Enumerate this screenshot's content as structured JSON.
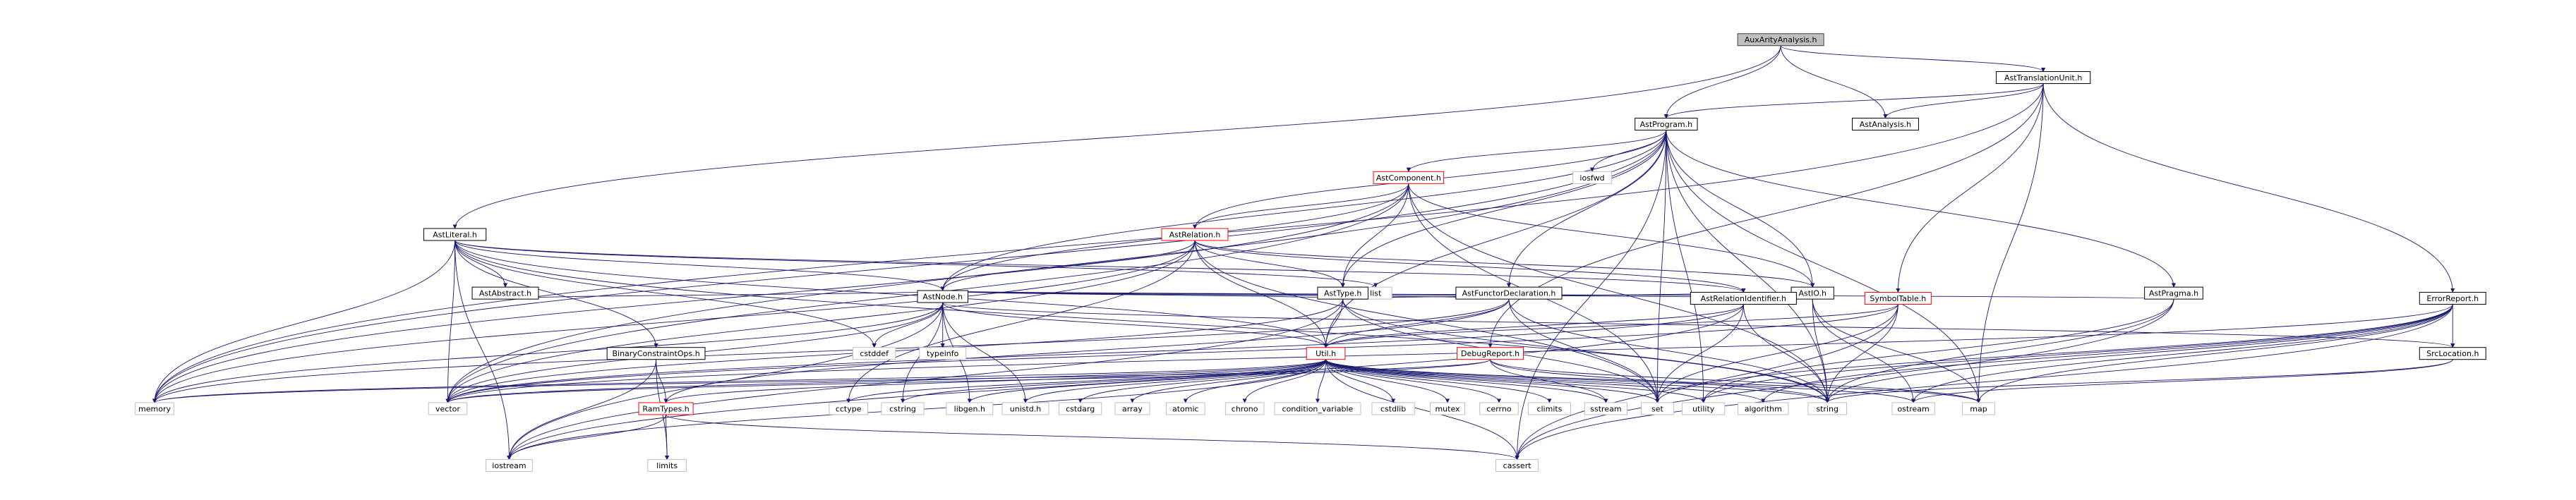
{
  "diagram": {
    "root": "AuxArityAnalysis.h",
    "colors": {
      "root_fill": "#bfbfbf",
      "root_border": "#404040",
      "documented_border": "#000000",
      "truncated_border": "#ff0000",
      "system_border": "#bfbfbf",
      "edge": "#191970"
    },
    "nodes": [
      {
        "id": "aux",
        "label": "AuxArityAnalysis.h",
        "kind": "root"
      },
      {
        "id": "atu",
        "label": "AstTranslationUnit.h",
        "kind": "documented"
      },
      {
        "id": "aprog",
        "label": "AstProgram.h",
        "kind": "documented"
      },
      {
        "id": "aanal",
        "label": "AstAnalysis.h",
        "kind": "documented"
      },
      {
        "id": "iosfwd",
        "label": "iosfwd",
        "kind": "system"
      },
      {
        "id": "acomp",
        "label": "AstComponent.h",
        "kind": "truncated"
      },
      {
        "id": "alit",
        "label": "AstLiteral.h",
        "kind": "documented"
      },
      {
        "id": "arel",
        "label": "AstRelation.h",
        "kind": "truncated"
      },
      {
        "id": "list",
        "label": "list",
        "kind": "system"
      },
      {
        "id": "aabs",
        "label": "AstAbstract.h",
        "kind": "documented"
      },
      {
        "id": "atype",
        "label": "AstType.h",
        "kind": "documented"
      },
      {
        "id": "afunc",
        "label": "AstFunctorDeclaration.h",
        "kind": "documented"
      },
      {
        "id": "aio",
        "label": "AstIO.h",
        "kind": "documented"
      },
      {
        "id": "aprag",
        "label": "AstPragma.h",
        "kind": "documented"
      },
      {
        "id": "anode",
        "label": "AstNode.h",
        "kind": "documented"
      },
      {
        "id": "ari",
        "label": "AstRelationIdentifier.h",
        "kind": "documented"
      },
      {
        "id": "symt",
        "label": "SymbolTable.h",
        "kind": "truncated"
      },
      {
        "id": "errr",
        "label": "ErrorReport.h",
        "kind": "documented"
      },
      {
        "id": "cstddef",
        "label": "cstddef",
        "kind": "system"
      },
      {
        "id": "typeinfo",
        "label": "typeinfo",
        "kind": "system"
      },
      {
        "id": "bco",
        "label": "BinaryConstraintOps.h",
        "kind": "documented"
      },
      {
        "id": "util",
        "label": "Util.h",
        "kind": "truncated"
      },
      {
        "id": "dbg",
        "label": "DebugReport.h",
        "kind": "truncated"
      },
      {
        "id": "srcloc",
        "label": "SrcLocation.h",
        "kind": "documented"
      },
      {
        "id": "memory",
        "label": "memory",
        "kind": "system"
      },
      {
        "id": "vector",
        "label": "vector",
        "kind": "system"
      },
      {
        "id": "ramt",
        "label": "RamTypes.h",
        "kind": "truncated"
      },
      {
        "id": "cctype",
        "label": "cctype",
        "kind": "system"
      },
      {
        "id": "cstring",
        "label": "cstring",
        "kind": "system"
      },
      {
        "id": "libgen",
        "label": "libgen.h",
        "kind": "system"
      },
      {
        "id": "unistd",
        "label": "unistd.h",
        "kind": "system"
      },
      {
        "id": "cstdarg",
        "label": "cstdarg",
        "kind": "system"
      },
      {
        "id": "array",
        "label": "array",
        "kind": "system"
      },
      {
        "id": "atomic",
        "label": "atomic",
        "kind": "system"
      },
      {
        "id": "chrono",
        "label": "chrono",
        "kind": "system"
      },
      {
        "id": "condvar",
        "label": "condition_variable",
        "kind": "system"
      },
      {
        "id": "cstdlib",
        "label": "cstdlib",
        "kind": "system"
      },
      {
        "id": "mutex",
        "label": "mutex",
        "kind": "system"
      },
      {
        "id": "cerrno",
        "label": "cerrno",
        "kind": "system"
      },
      {
        "id": "climits",
        "label": "climits",
        "kind": "system"
      },
      {
        "id": "sstream",
        "label": "sstream",
        "kind": "system"
      },
      {
        "id": "set",
        "label": "set",
        "kind": "system"
      },
      {
        "id": "utility",
        "label": "utility",
        "kind": "system"
      },
      {
        "id": "algorithm",
        "label": "algorithm",
        "kind": "system"
      },
      {
        "id": "string",
        "label": "string",
        "kind": "system"
      },
      {
        "id": "ostream",
        "label": "ostream",
        "kind": "system"
      },
      {
        "id": "map",
        "label": "map",
        "kind": "system"
      },
      {
        "id": "iostream",
        "label": "iostream",
        "kind": "system"
      },
      {
        "id": "limits",
        "label": "limits",
        "kind": "system"
      },
      {
        "id": "cassert",
        "label": "cassert",
        "kind": "system"
      }
    ],
    "edges": [
      [
        "aux",
        "atu"
      ],
      [
        "aux",
        "aprog"
      ],
      [
        "aux",
        "aanal"
      ],
      [
        "aux",
        "alit"
      ],
      [
        "atu",
        "aprog"
      ],
      [
        "atu",
        "aanal"
      ],
      [
        "atu",
        "errr"
      ],
      [
        "atu",
        "symt"
      ],
      [
        "atu",
        "dbg"
      ],
      [
        "atu",
        "memory"
      ],
      [
        "atu",
        "map"
      ],
      [
        "aprog",
        "iosfwd"
      ],
      [
        "aprog",
        "acomp"
      ],
      [
        "aprog",
        "arel"
      ],
      [
        "aprog",
        "atype"
      ],
      [
        "aprog",
        "afunc"
      ],
      [
        "aprog",
        "aio"
      ],
      [
        "aprog",
        "aprag"
      ],
      [
        "aprog",
        "anode"
      ],
      [
        "aprog",
        "util"
      ],
      [
        "aprog",
        "memory"
      ],
      [
        "aprog",
        "vector"
      ],
      [
        "aprog",
        "string"
      ],
      [
        "aprog",
        "map"
      ],
      [
        "aprog",
        "set"
      ],
      [
        "aprog",
        "utility"
      ],
      [
        "aprog",
        "cassert"
      ],
      [
        "acomp",
        "arel"
      ],
      [
        "acomp",
        "atype"
      ],
      [
        "acomp",
        "aio"
      ],
      [
        "acomp",
        "anode"
      ],
      [
        "acomp",
        "memory"
      ],
      [
        "acomp",
        "vector"
      ],
      [
        "acomp",
        "string"
      ],
      [
        "acomp",
        "set"
      ],
      [
        "alit",
        "list"
      ],
      [
        "alit",
        "aabs"
      ],
      [
        "alit",
        "anode"
      ],
      [
        "alit",
        "ari"
      ],
      [
        "alit",
        "bco"
      ],
      [
        "alit",
        "util"
      ],
      [
        "alit",
        "memory"
      ],
      [
        "alit",
        "vector"
      ],
      [
        "alit",
        "string"
      ],
      [
        "alit",
        "iostream"
      ],
      [
        "alit",
        "cstddef"
      ],
      [
        "arel",
        "atype"
      ],
      [
        "arel",
        "aio"
      ],
      [
        "arel",
        "ari"
      ],
      [
        "arel",
        "anode"
      ],
      [
        "arel",
        "util"
      ],
      [
        "arel",
        "memory"
      ],
      [
        "arel",
        "vector"
      ],
      [
        "arel",
        "set"
      ],
      [
        "arel",
        "cctype"
      ],
      [
        "aabs",
        "anode"
      ],
      [
        "atype",
        "anode"
      ],
      [
        "atype",
        "ari"
      ],
      [
        "atype",
        "util"
      ],
      [
        "atype",
        "set"
      ],
      [
        "atype",
        "string"
      ],
      [
        "atype",
        "vector"
      ],
      [
        "atype",
        "iostream"
      ],
      [
        "afunc",
        "anode"
      ],
      [
        "afunc",
        "util"
      ],
      [
        "afunc",
        "string"
      ],
      [
        "afunc",
        "set"
      ],
      [
        "afunc",
        "ramt"
      ],
      [
        "afunc",
        "memory"
      ],
      [
        "aio",
        "anode"
      ],
      [
        "aio",
        "ari"
      ],
      [
        "aio",
        "map"
      ],
      [
        "aio",
        "string"
      ],
      [
        "aio",
        "ostream"
      ],
      [
        "aprag",
        "anode"
      ],
      [
        "aprag",
        "string"
      ],
      [
        "aprag",
        "utility"
      ],
      [
        "aprag",
        "cassert"
      ],
      [
        "anode",
        "cstddef"
      ],
      [
        "anode",
        "typeinfo"
      ],
      [
        "anode",
        "srcloc"
      ],
      [
        "anode",
        "util"
      ],
      [
        "anode",
        "memory"
      ],
      [
        "anode",
        "vector"
      ],
      [
        "anode",
        "iostream"
      ],
      [
        "anode",
        "cstring"
      ],
      [
        "anode",
        "libgen"
      ],
      [
        "anode",
        "unistd"
      ],
      [
        "ari",
        "util"
      ],
      [
        "ari",
        "string"
      ],
      [
        "ari",
        "vector"
      ],
      [
        "ari",
        "iostream"
      ],
      [
        "ari",
        "set"
      ],
      [
        "symt",
        "util"
      ],
      [
        "symt",
        "string"
      ],
      [
        "symt",
        "vector"
      ],
      [
        "symt",
        "cassert"
      ],
      [
        "symt",
        "set"
      ],
      [
        "errr",
        "srcloc"
      ],
      [
        "errr",
        "string"
      ],
      [
        "errr",
        "ostream"
      ],
      [
        "errr",
        "map"
      ],
      [
        "errr",
        "cassert"
      ],
      [
        "errr",
        "algorithm"
      ],
      [
        "errr",
        "set"
      ],
      [
        "errr",
        "utility"
      ],
      [
        "errr",
        "vector"
      ],
      [
        "bco",
        "ramt"
      ],
      [
        "bco",
        "iostream"
      ],
      [
        "bco",
        "limits"
      ],
      [
        "dbg",
        "string"
      ],
      [
        "dbg",
        "memory"
      ],
      [
        "dbg",
        "vector"
      ],
      [
        "dbg",
        "sstream"
      ],
      [
        "dbg",
        "map"
      ],
      [
        "srcloc",
        "string"
      ],
      [
        "srcloc",
        "ostream"
      ],
      [
        "util",
        "memory"
      ],
      [
        "util",
        "vector"
      ],
      [
        "util",
        "ramt"
      ],
      [
        "util",
        "cctype"
      ],
      [
        "util",
        "cstring"
      ],
      [
        "util",
        "libgen"
      ],
      [
        "util",
        "unistd"
      ],
      [
        "util",
        "cstdarg"
      ],
      [
        "util",
        "array"
      ],
      [
        "util",
        "atomic"
      ],
      [
        "util",
        "chrono"
      ],
      [
        "util",
        "condvar"
      ],
      [
        "util",
        "cstdlib"
      ],
      [
        "util",
        "mutex"
      ],
      [
        "util",
        "cerrno"
      ],
      [
        "util",
        "climits"
      ],
      [
        "util",
        "sstream"
      ],
      [
        "util",
        "set"
      ],
      [
        "util",
        "utility"
      ],
      [
        "util",
        "algorithm"
      ],
      [
        "util",
        "string"
      ],
      [
        "util",
        "ostream"
      ],
      [
        "util",
        "map"
      ],
      [
        "util",
        "iostream"
      ],
      [
        "util",
        "cassert"
      ],
      [
        "ramt",
        "limits"
      ],
      [
        "ramt",
        "iostream"
      ],
      [
        "ramt",
        "cassert"
      ]
    ]
  }
}
